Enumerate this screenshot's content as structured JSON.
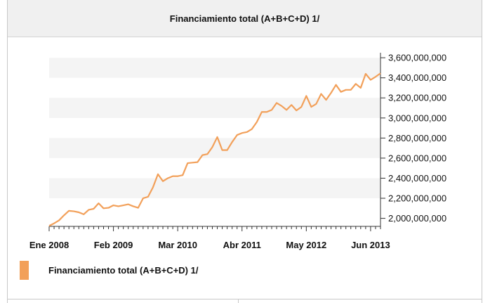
{
  "chart_data": {
    "type": "line",
    "title": "Financiamiento total (A+B+C+D) 1/",
    "series_name": "Financiamiento total (A+B+C+D) 1/",
    "color": "#f2a05a",
    "band_color": "#f4f4f4",
    "ylim": [
      1920000000,
      3650000000
    ],
    "y_ticks": [
      2000000000,
      2200000000,
      2400000000,
      2600000000,
      2800000000,
      3000000000,
      3200000000,
      3400000000,
      3600000000
    ],
    "y_tick_labels": [
      "2,000,000,000",
      "2,200,000,000",
      "2,400,000,000",
      "2,600,000,000",
      "2,800,000,000",
      "3,000,000,000",
      "3,200,000,000",
      "3,400,000,000",
      "3,600,000,000"
    ],
    "x_tick_labels": [
      {
        "index": 0,
        "label": "Ene 2008"
      },
      {
        "index": 13,
        "label": "Feb 2009"
      },
      {
        "index": 26,
        "label": "Mar 2010"
      },
      {
        "index": 39,
        "label": "Abr 2011"
      },
      {
        "index": 52,
        "label": "May 2012"
      },
      {
        "index": 65,
        "label": "Jun 2013"
      }
    ],
    "values": [
      1925000000,
      1950000000,
      1980000000,
      2030000000,
      2075000000,
      2070000000,
      2060000000,
      2040000000,
      2085000000,
      2095000000,
      2150000000,
      2100000000,
      2105000000,
      2130000000,
      2120000000,
      2130000000,
      2140000000,
      2120000000,
      2105000000,
      2200000000,
      2215000000,
      2310000000,
      2440000000,
      2370000000,
      2400000000,
      2420000000,
      2420000000,
      2430000000,
      2550000000,
      2555000000,
      2560000000,
      2630000000,
      2640000000,
      2710000000,
      2810000000,
      2680000000,
      2680000000,
      2760000000,
      2830000000,
      2850000000,
      2860000000,
      2890000000,
      2960000000,
      3060000000,
      3060000000,
      3080000000,
      3150000000,
      3120000000,
      3080000000,
      3130000000,
      3075000000,
      3110000000,
      3220000000,
      3110000000,
      3140000000,
      3240000000,
      3180000000,
      3250000000,
      3330000000,
      3260000000,
      3280000000,
      3280000000,
      3340000000,
      3300000000,
      3440000000,
      3380000000,
      3410000000,
      3445000000
    ]
  }
}
